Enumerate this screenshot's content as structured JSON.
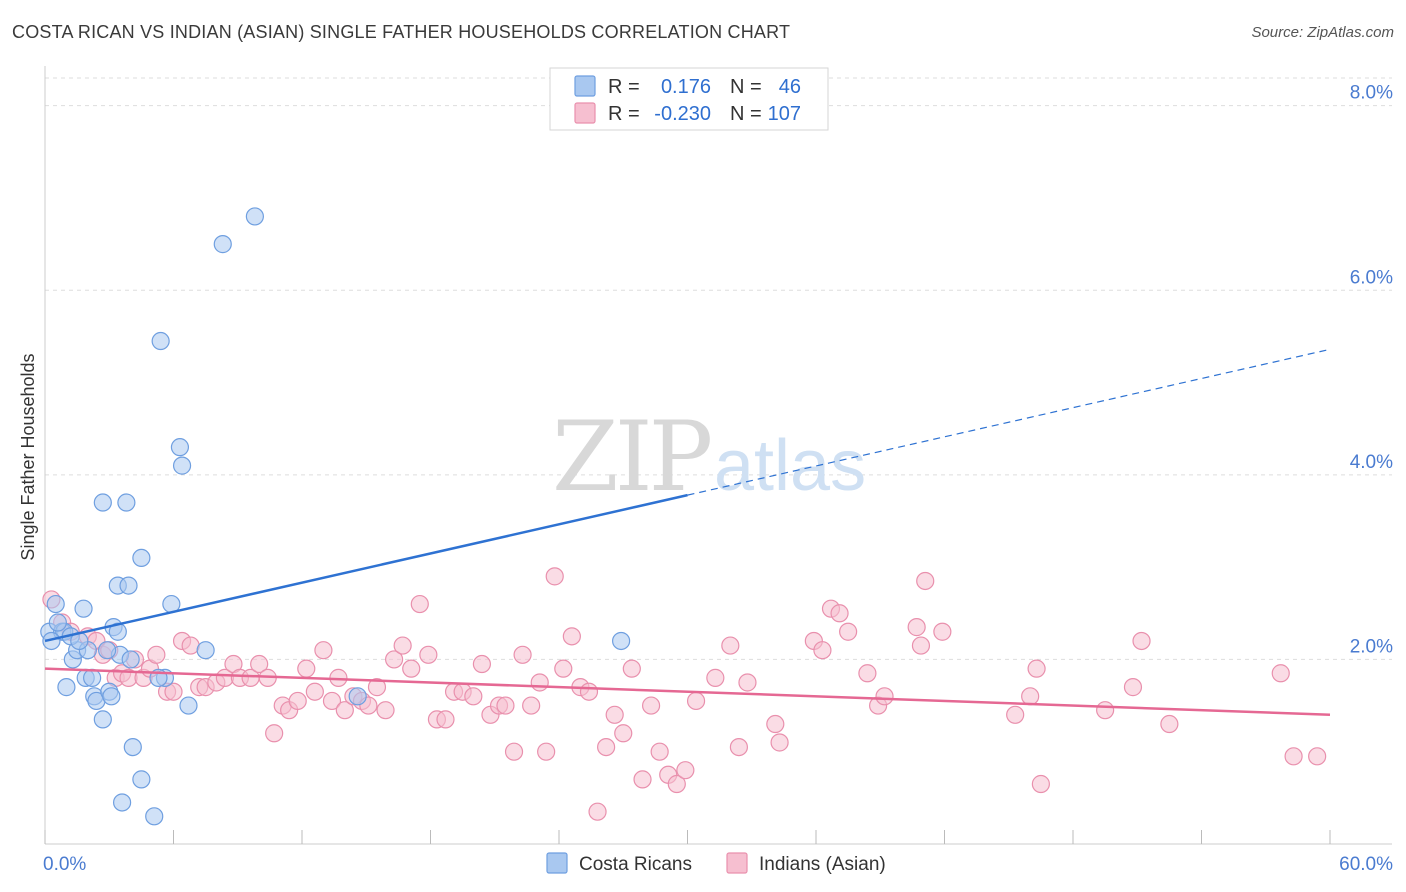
{
  "title": "COSTA RICAN VS INDIAN (ASIAN) SINGLE FATHER HOUSEHOLDS CORRELATION CHART",
  "source": "Source: ZipAtlas.com",
  "watermark": {
    "zip": "ZIP",
    "atlas": "atlas"
  },
  "colors": {
    "blue_fill": "#a9c8f0",
    "blue_stroke": "#6f9fe0",
    "blue_line": "#2e72d2",
    "pink_fill": "#f6bfd0",
    "pink_stroke": "#e990ad",
    "pink_line": "#e56893",
    "grid": "#dddddd",
    "tick_text": "#4a7bd0"
  },
  "legend": {
    "r_label": "R =",
    "n_label": "N =",
    "rows": [
      {
        "series": "Costa Ricans",
        "r": "0.176",
        "n": "46"
      },
      {
        "series": "Indians (Asian)",
        "r": "-0.230",
        "n": "107"
      }
    ],
    "placement": "top-center"
  },
  "chart_data": {
    "type": "scatter",
    "title": "COSTA RICAN VS INDIAN (ASIAN) SINGLE FATHER HOUSEHOLDS CORRELATION CHART",
    "xlabel": "",
    "ylabel": "Single Father Households",
    "xlim": [
      0,
      60
    ],
    "ylim": [
      0,
      8.3
    ],
    "x_ticks_labeled": [
      {
        "value": 0,
        "label": "0.0%"
      },
      {
        "value": 60,
        "label": "60.0%"
      }
    ],
    "x_tick_marks": [
      0,
      6,
      12,
      18,
      24,
      30,
      36,
      42,
      48,
      54,
      60
    ],
    "y_ticks": [
      {
        "value": 2,
        "label": "2.0%"
      },
      {
        "value": 4,
        "label": "4.0%"
      },
      {
        "value": 6,
        "label": "6.0%"
      },
      {
        "value": 8,
        "label": "8.0%"
      }
    ],
    "grid": "horizontal dashed",
    "series": [
      {
        "name": "Costa Ricans",
        "color": "#a9c8f0",
        "points": [
          [
            0.2,
            2.3
          ],
          [
            0.5,
            2.6
          ],
          [
            0.8,
            2.3
          ],
          [
            1.0,
            1.7
          ],
          [
            1.3,
            2.0
          ],
          [
            1.5,
            2.1
          ],
          [
            1.8,
            2.55
          ],
          [
            1.9,
            1.8
          ],
          [
            2.0,
            2.1
          ],
          [
            2.3,
            1.6
          ],
          [
            2.4,
            1.55
          ],
          [
            2.7,
            3.7
          ],
          [
            2.7,
            1.35
          ],
          [
            3.0,
            1.65
          ],
          [
            3.2,
            2.35
          ],
          [
            3.4,
            2.8
          ],
          [
            3.5,
            2.05
          ],
          [
            3.6,
            0.45
          ],
          [
            3.8,
            3.7
          ],
          [
            3.9,
            2.8
          ],
          [
            4.1,
            1.05
          ],
          [
            4.5,
            3.1
          ],
          [
            4.5,
            0.7
          ],
          [
            5.1,
            0.3
          ],
          [
            5.4,
            5.45
          ],
          [
            5.6,
            1.8
          ],
          [
            5.9,
            2.6
          ],
          [
            6.3,
            4.3
          ],
          [
            6.4,
            4.1
          ],
          [
            6.7,
            1.5
          ],
          [
            7.5,
            2.1
          ],
          [
            8.3,
            6.5
          ],
          [
            9.8,
            6.8
          ],
          [
            14.6,
            1.6
          ],
          [
            26.9,
            2.2
          ],
          [
            0.9,
            2.3
          ],
          [
            3.4,
            2.3
          ],
          [
            1.2,
            2.25
          ],
          [
            5.3,
            1.8
          ],
          [
            0.6,
            2.4
          ],
          [
            2.2,
            1.8
          ],
          [
            1.6,
            2.2
          ],
          [
            0.3,
            2.2
          ],
          [
            2.9,
            2.1
          ],
          [
            4.0,
            2.0
          ],
          [
            3.1,
            1.6
          ]
        ]
      },
      {
        "name": "Indians (Asian)",
        "color": "#f6bfd0",
        "points": [
          [
            0.3,
            2.65
          ],
          [
            0.8,
            2.4
          ],
          [
            1.2,
            2.3
          ],
          [
            2.0,
            2.25
          ],
          [
            2.4,
            2.2
          ],
          [
            2.7,
            2.05
          ],
          [
            3.0,
            2.1
          ],
          [
            3.3,
            1.8
          ],
          [
            3.6,
            1.85
          ],
          [
            3.9,
            1.8
          ],
          [
            4.2,
            2.0
          ],
          [
            4.6,
            1.8
          ],
          [
            4.9,
            1.9
          ],
          [
            5.2,
            2.05
          ],
          [
            5.7,
            1.65
          ],
          [
            6.0,
            1.65
          ],
          [
            6.4,
            2.2
          ],
          [
            6.8,
            2.15
          ],
          [
            7.2,
            1.7
          ],
          [
            7.5,
            1.7
          ],
          [
            8.0,
            1.75
          ],
          [
            8.4,
            1.8
          ],
          [
            8.8,
            1.95
          ],
          [
            9.1,
            1.8
          ],
          [
            9.6,
            1.8
          ],
          [
            10.0,
            1.95
          ],
          [
            10.4,
            1.8
          ],
          [
            10.7,
            1.2
          ],
          [
            11.1,
            1.5
          ],
          [
            11.4,
            1.45
          ],
          [
            11.8,
            1.55
          ],
          [
            12.2,
            1.9
          ],
          [
            12.6,
            1.65
          ],
          [
            13.0,
            2.1
          ],
          [
            13.4,
            1.55
          ],
          [
            13.7,
            1.8
          ],
          [
            14.0,
            1.45
          ],
          [
            14.4,
            1.6
          ],
          [
            14.8,
            1.55
          ],
          [
            15.1,
            1.5
          ],
          [
            15.5,
            1.7
          ],
          [
            15.9,
            1.45
          ],
          [
            16.3,
            2.0
          ],
          [
            16.7,
            2.15
          ],
          [
            17.1,
            1.9
          ],
          [
            17.5,
            2.6
          ],
          [
            17.9,
            2.05
          ],
          [
            18.3,
            1.35
          ],
          [
            18.7,
            1.35
          ],
          [
            19.1,
            1.65
          ],
          [
            19.5,
            1.65
          ],
          [
            20.0,
            1.6
          ],
          [
            20.4,
            1.95
          ],
          [
            20.8,
            1.4
          ],
          [
            21.2,
            1.5
          ],
          [
            21.5,
            1.5
          ],
          [
            21.9,
            1.0
          ],
          [
            22.3,
            2.05
          ],
          [
            22.7,
            1.5
          ],
          [
            23.1,
            1.75
          ],
          [
            23.4,
            1.0
          ],
          [
            23.8,
            2.9
          ],
          [
            24.2,
            1.9
          ],
          [
            24.6,
            2.25
          ],
          [
            25.0,
            1.7
          ],
          [
            25.4,
            1.65
          ],
          [
            25.8,
            0.35
          ],
          [
            26.2,
            1.05
          ],
          [
            26.6,
            1.4
          ],
          [
            27.0,
            1.2
          ],
          [
            27.4,
            1.9
          ],
          [
            27.9,
            0.7
          ],
          [
            28.3,
            1.5
          ],
          [
            28.7,
            1.0
          ],
          [
            29.1,
            0.75
          ],
          [
            29.5,
            0.65
          ],
          [
            29.9,
            0.8
          ],
          [
            30.4,
            1.55
          ],
          [
            31.3,
            1.8
          ],
          [
            32.0,
            2.15
          ],
          [
            32.4,
            1.05
          ],
          [
            32.8,
            1.75
          ],
          [
            34.1,
            1.3
          ],
          [
            34.3,
            1.1
          ],
          [
            35.9,
            2.2
          ],
          [
            36.3,
            2.1
          ],
          [
            36.7,
            2.55
          ],
          [
            37.1,
            2.5
          ],
          [
            37.5,
            2.3
          ],
          [
            38.4,
            1.85
          ],
          [
            38.9,
            1.5
          ],
          [
            39.2,
            1.6
          ],
          [
            40.7,
            2.35
          ],
          [
            40.9,
            2.15
          ],
          [
            41.1,
            2.85
          ],
          [
            41.9,
            2.3
          ],
          [
            45.3,
            1.4
          ],
          [
            46.0,
            1.6
          ],
          [
            46.5,
            0.65
          ],
          [
            46.3,
            1.9
          ],
          [
            49.5,
            1.45
          ],
          [
            50.8,
            1.7
          ],
          [
            51.2,
            2.2
          ],
          [
            52.5,
            1.3
          ],
          [
            59.4,
            0.95
          ],
          [
            58.3,
            0.95
          ],
          [
            57.7,
            1.85
          ]
        ]
      }
    ],
    "trendlines": [
      {
        "series": "Costa Ricans",
        "x": [
          0,
          30
        ],
        "y": [
          2.2,
          3.78
        ],
        "extended_x": [
          30,
          60
        ],
        "extended_y": [
          3.78,
          5.36
        ],
        "style": "solid then dashed"
      },
      {
        "series": "Indians (Asian)",
        "x": [
          0,
          60
        ],
        "y": [
          1.9,
          1.4
        ],
        "style": "solid"
      }
    ]
  }
}
